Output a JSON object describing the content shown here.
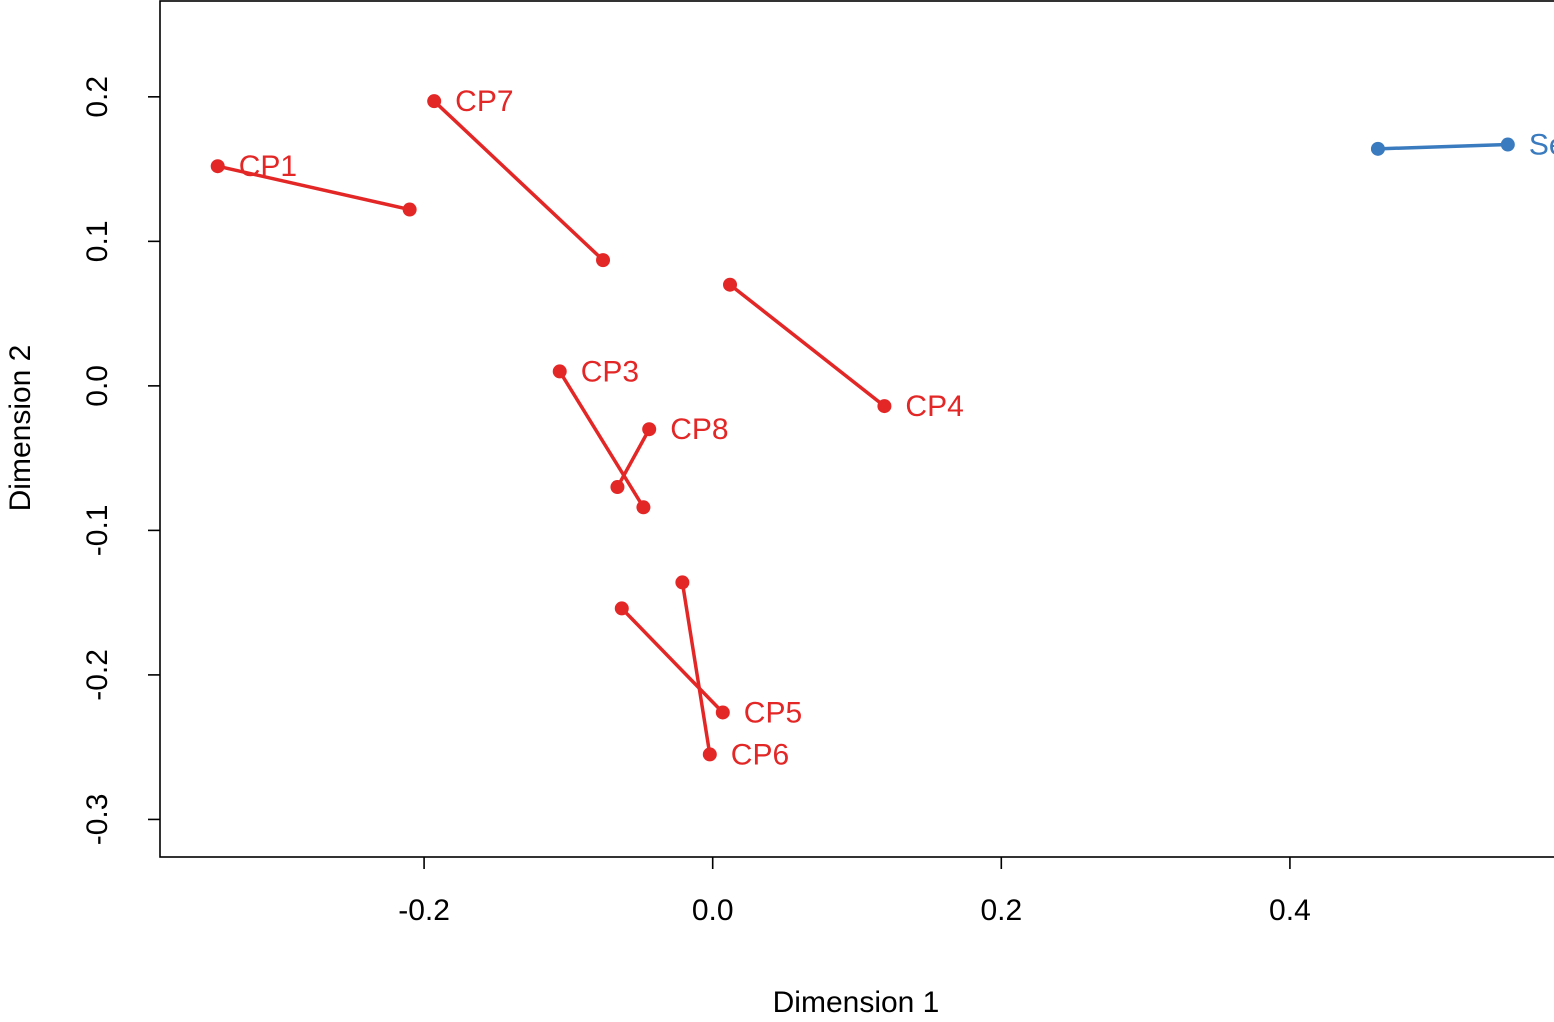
{
  "chart_data": {
    "type": "scatter",
    "xlabel": "Dimension 1",
    "ylabel": "Dimension 2",
    "xlim": [
      -0.383,
      0.583
    ],
    "ylim": [
      -0.326,
      0.267
    ],
    "x_ticks": [
      -0.2,
      0.0,
      0.2,
      0.4
    ],
    "x_tick_labels": [
      "-0.2",
      "0.0",
      "0.2",
      "0.4"
    ],
    "y_ticks": [
      -0.3,
      -0.2,
      -0.1,
      0.0,
      0.1,
      0.2
    ],
    "y_tick_labels": [
      "-0.3",
      "-0.2",
      "-0.1",
      "0.0",
      "0.1",
      "0.2"
    ],
    "grid": false,
    "colors": {
      "red": "#e32626",
      "blue": "#3a7bbf"
    },
    "series": [
      {
        "label": "CP1",
        "color": "#e32626",
        "points": [
          [
            -0.343,
            0.152
          ],
          [
            -0.21,
            0.122
          ]
        ]
      },
      {
        "label": "CP7",
        "color": "#e32626",
        "points": [
          [
            -0.193,
            0.197
          ],
          [
            -0.076,
            0.087
          ]
        ]
      },
      {
        "label": "CP3",
        "color": "#e32626",
        "points": [
          [
            -0.106,
            0.01
          ],
          [
            -0.048,
            -0.084
          ]
        ]
      },
      {
        "label": "CP8",
        "color": "#e32626",
        "points": [
          [
            -0.044,
            -0.03
          ],
          [
            -0.066,
            -0.07
          ]
        ]
      },
      {
        "label": "CP4",
        "color": "#e32626",
        "points": [
          [
            0.119,
            -0.014
          ],
          [
            0.012,
            0.07
          ]
        ]
      },
      {
        "label": "CP5",
        "color": "#e32626",
        "points": [
          [
            0.007,
            -0.226
          ],
          [
            -0.063,
            -0.154
          ]
        ]
      },
      {
        "label": "CP6",
        "color": "#e32626",
        "points": [
          [
            -0.002,
            -0.255
          ],
          [
            -0.021,
            -0.136
          ]
        ]
      },
      {
        "label": "Se",
        "color": "#3a7bbf",
        "points": [
          [
            0.551,
            0.167
          ],
          [
            0.461,
            0.164
          ]
        ]
      }
    ]
  }
}
